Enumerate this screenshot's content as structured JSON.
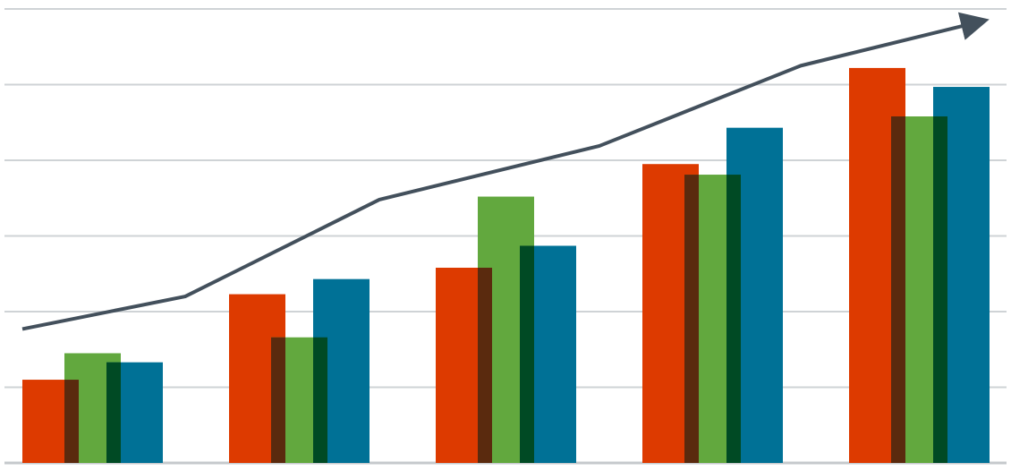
{
  "chart_data": {
    "type": "bar",
    "title": "",
    "xlabel": "",
    "ylabel": "",
    "ylim": [
      0,
      6
    ],
    "grid": true,
    "legend": "none",
    "categories": [
      "",
      "",
      "",
      "",
      ""
    ],
    "series": [
      {
        "values": [
          1.1,
          2.23,
          2.58,
          3.95,
          5.22
        ]
      },
      {
        "values": [
          1.45,
          1.66,
          3.52,
          3.81,
          4.58
        ]
      },
      {
        "values": [
          1.33,
          2.43,
          2.87,
          4.43,
          4.97
        ]
      }
    ],
    "trend": {
      "type": "line",
      "arrow": true,
      "values": [
        1.77,
        2.2,
        3.48,
        4.19,
        5.25,
        5.84
      ]
    },
    "colors": {
      "series": [
        "#dd3a00",
        "#62a83e",
        "#007196"
      ],
      "overlap": [
        "#5a2a0e",
        "#004a24"
      ],
      "trend": "#43505c",
      "grid": "#cfd3d6",
      "baseline": "#c5c9cc"
    }
  }
}
